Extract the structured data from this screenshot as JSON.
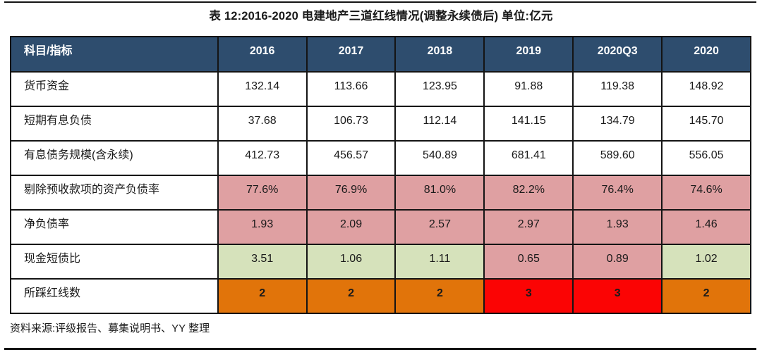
{
  "title": "表 12:2016-2020 电建地产三道红线情况(调整永续债后)  单位:亿元",
  "source_note": "资料来源:评级报告、募集说明书、YY 整理",
  "colors": {
    "header_bg": "#2e4d6e",
    "header_text": "#ffffff",
    "pink": "#dfa0a2",
    "green": "#d6e2bb",
    "orange": "#e1740a",
    "red": "#fb0404",
    "border": "#141414",
    "text": "#1a1a1a"
  },
  "chart_data": {
    "type": "table",
    "title": "表 12:2016-2020 电建地产三道红线情况(调整永续债后) 单位:亿元",
    "header": [
      "科目/指标",
      "2016",
      "2017",
      "2018",
      "2019",
      "2020Q3",
      "2020"
    ],
    "rows": [
      {
        "label": "货币资金",
        "values": [
          "132.14",
          "113.66",
          "123.95",
          "91.88",
          "119.38",
          "148.92"
        ],
        "cell_styles": [
          "plain",
          "plain",
          "plain",
          "plain",
          "plain",
          "plain"
        ],
        "bold": false
      },
      {
        "label": "短期有息负债",
        "values": [
          "37.68",
          "106.73",
          "112.14",
          "141.15",
          "134.79",
          "145.70"
        ],
        "cell_styles": [
          "plain",
          "plain",
          "plain",
          "plain",
          "plain",
          "plain"
        ],
        "bold": false
      },
      {
        "label": "有息债务规模(含永续)",
        "values": [
          "412.73",
          "456.57",
          "540.89",
          "681.41",
          "589.60",
          "556.05"
        ],
        "cell_styles": [
          "plain",
          "plain",
          "plain",
          "plain",
          "plain",
          "plain"
        ],
        "bold": false
      },
      {
        "label": "剔除预收款项的资产负债率",
        "values": [
          "77.6%",
          "76.9%",
          "81.0%",
          "82.2%",
          "76.4%",
          "74.6%"
        ],
        "cell_styles": [
          "pink",
          "pink",
          "pink",
          "pink",
          "pink",
          "pink"
        ],
        "bold": false
      },
      {
        "label": "净负债率",
        "values": [
          "1.93",
          "2.09",
          "2.57",
          "2.97",
          "1.93",
          "1.46"
        ],
        "cell_styles": [
          "pink",
          "pink",
          "pink",
          "pink",
          "pink",
          "pink"
        ],
        "bold": false
      },
      {
        "label": "现金短债比",
        "values": [
          "3.51",
          "1.06",
          "1.11",
          "0.65",
          "0.89",
          "1.02"
        ],
        "cell_styles": [
          "green",
          "green",
          "green",
          "pink",
          "pink",
          "green"
        ],
        "bold": false
      },
      {
        "label": "所踩红线数",
        "values": [
          "2",
          "2",
          "2",
          "3",
          "3",
          "2"
        ],
        "cell_styles": [
          "orange",
          "orange",
          "orange",
          "red",
          "red",
          "orange"
        ],
        "bold": true
      }
    ]
  }
}
